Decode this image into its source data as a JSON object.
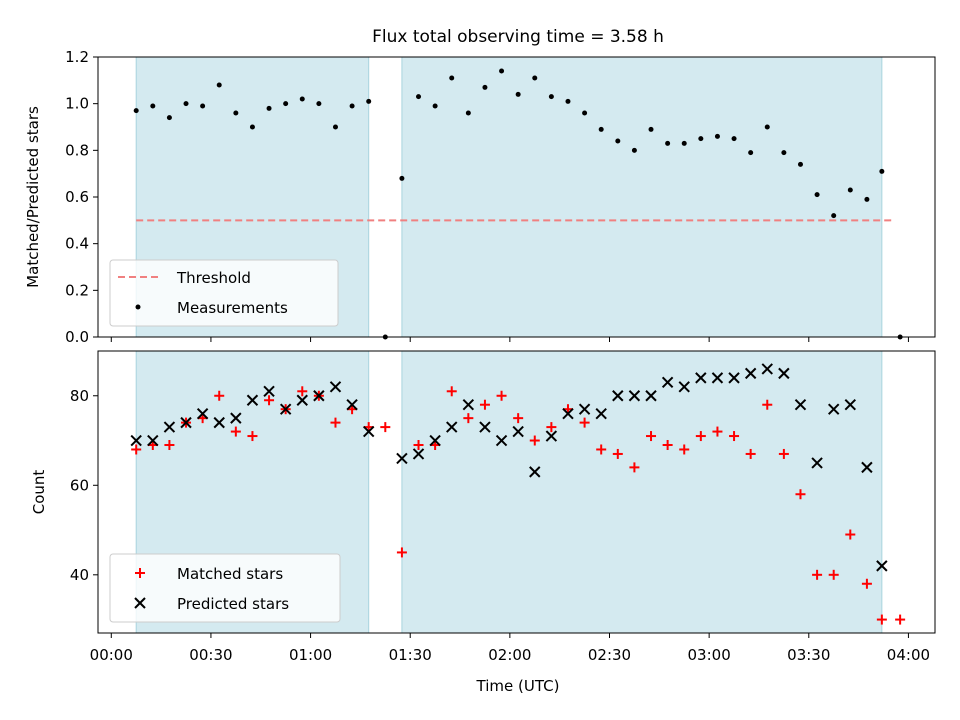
{
  "title": "Flux total observing time = 3.58 h",
  "chart_data": [
    {
      "type": "scatter",
      "ylabel": "Matched/Predicted stars",
      "ylim": [
        0,
        1.2
      ],
      "yticks": [
        0.0,
        0.2,
        0.4,
        0.6,
        0.8,
        1.0,
        1.2
      ],
      "ytick_labels": [
        "0.0",
        "0.2",
        "0.4",
        "0.6",
        "0.8",
        "1.0",
        "1.2"
      ],
      "xlim_minutes": [
        -4,
        248
      ],
      "grid": false,
      "legend": "lower-left",
      "observing_windows_minutes": [
        [
          7.5,
          77.5
        ],
        [
          87.5,
          232
        ]
      ],
      "threshold": {
        "name": "Threshold",
        "value": 0.5,
        "x_minutes": [
          7.5,
          236
        ],
        "color": "#f08080"
      },
      "measurements": {
        "name": "Measurements",
        "color": "#000000",
        "x_minutes": [
          7.5,
          12.5,
          17.5,
          22.5,
          27.5,
          32.5,
          37.5,
          42.5,
          47.5,
          52.5,
          57.5,
          62.5,
          67.5,
          72.5,
          77.5,
          82.5,
          87.5,
          92.5,
          97.5,
          102.5,
          107.5,
          112.5,
          117.5,
          122.5,
          127.5,
          132.5,
          137.5,
          142.5,
          147.5,
          152.5,
          157.5,
          162.5,
          167.5,
          172.5,
          177.5,
          182.5,
          187.5,
          192.5,
          197.5,
          202.5,
          207.5,
          212.5,
          217.5,
          222.5,
          227.5,
          232,
          237.5
        ],
        "y": [
          0.97,
          0.99,
          0.94,
          1.0,
          0.99,
          1.08,
          0.96,
          0.9,
          0.98,
          1.0,
          1.02,
          1.0,
          0.9,
          0.99,
          1.01,
          0.0,
          0.68,
          1.03,
          0.99,
          1.11,
          0.96,
          1.07,
          1.14,
          1.04,
          1.11,
          1.03,
          1.01,
          0.96,
          0.89,
          0.84,
          0.8,
          0.89,
          0.83,
          0.83,
          0.85,
          0.86,
          0.85,
          0.79,
          0.9,
          0.79,
          0.74,
          0.61,
          0.52,
          0.63,
          0.59,
          0.71,
          0.0
        ]
      }
    },
    {
      "type": "scatter",
      "ylabel": "Count",
      "xlabel": "Time (UTC)",
      "ylim": [
        27,
        90
      ],
      "yticks": [
        40,
        60,
        80
      ],
      "ytick_labels": [
        "40",
        "60",
        "80"
      ],
      "xlim_minutes": [
        -4,
        248
      ],
      "xticks_minutes": [
        0,
        30,
        60,
        90,
        120,
        150,
        180,
        210,
        240
      ],
      "xtick_labels": [
        "00:00",
        "00:30",
        "01:00",
        "01:30",
        "02:00",
        "02:30",
        "03:00",
        "03:30",
        "04:00"
      ],
      "grid": false,
      "legend": "lower-left",
      "observing_windows_minutes": [
        [
          7.5,
          77.5
        ],
        [
          87.5,
          232
        ]
      ],
      "series": [
        {
          "name": "Matched stars",
          "marker": "plus",
          "color": "#ff0000",
          "x_minutes": [
            7.5,
            12.5,
            17.5,
            22.5,
            27.5,
            32.5,
            37.5,
            42.5,
            47.5,
            52.5,
            57.5,
            62.5,
            67.5,
            72.5,
            77.5,
            82.5,
            87.5,
            92.5,
            97.5,
            102.5,
            107.5,
            112.5,
            117.5,
            122.5,
            127.5,
            132.5,
            137.5,
            142.5,
            147.5,
            152.5,
            157.5,
            162.5,
            167.5,
            172.5,
            177.5,
            182.5,
            187.5,
            192.5,
            197.5,
            202.5,
            207.5,
            212.5,
            217.5,
            222.5,
            227.5,
            232,
            237.5
          ],
          "y": [
            68,
            69,
            69,
            74,
            75,
            80,
            72,
            71,
            79,
            77,
            81,
            80,
            74,
            77,
            73,
            73,
            45,
            69,
            69,
            81,
            75,
            78,
            80,
            75,
            70,
            73,
            77,
            74,
            68,
            67,
            64,
            71,
            69,
            68,
            71,
            72,
            71,
            67,
            78,
            67,
            58,
            40,
            40,
            49,
            38,
            30,
            30
          ]
        },
        {
          "name": "Predicted stars",
          "marker": "x",
          "color": "#000000",
          "x_minutes": [
            7.5,
            12.5,
            17.5,
            22.5,
            27.5,
            32.5,
            37.5,
            42.5,
            47.5,
            52.5,
            57.5,
            62.5,
            67.5,
            72.5,
            77.5,
            87.5,
            92.5,
            97.5,
            102.5,
            107.5,
            112.5,
            117.5,
            122.5,
            127.5,
            132.5,
            137.5,
            142.5,
            147.5,
            152.5,
            157.5,
            162.5,
            167.5,
            172.5,
            177.5,
            182.5,
            187.5,
            192.5,
            197.5,
            202.5,
            207.5,
            212.5,
            217.5,
            222.5,
            227.5,
            232
          ],
          "y": [
            70,
            70,
            73,
            74,
            76,
            74,
            75,
            79,
            81,
            77,
            79,
            80,
            82,
            78,
            72,
            66,
            67,
            70,
            73,
            78,
            73,
            70,
            72,
            63,
            71,
            76,
            77,
            76,
            80,
            80,
            80,
            83,
            82,
            84,
            84,
            84,
            85,
            86,
            85,
            78,
            65,
            77,
            78,
            64,
            42
          ]
        }
      ]
    }
  ],
  "style": {
    "window_fill": "#d4eaf0",
    "window_edge": "#a9d4de"
  }
}
